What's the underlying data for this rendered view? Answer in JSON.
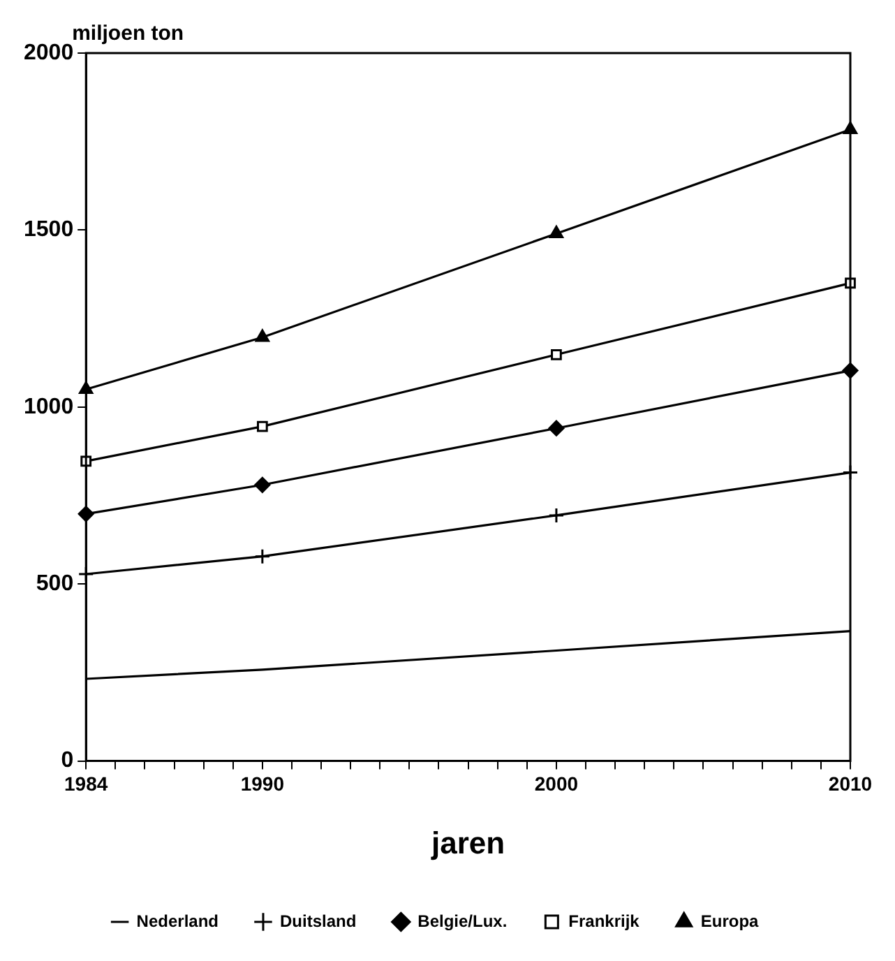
{
  "chart_data": {
    "type": "line",
    "ylabel": "miljoen ton",
    "xlabel": "jaren",
    "x": [
      1984,
      1990,
      2000,
      2010
    ],
    "series": [
      {
        "name": "Nederland",
        "color": "#000000",
        "marker": "none",
        "values": [
          232,
          258,
          312,
          367
        ]
      },
      {
        "name": "Duitsland",
        "color": "#000000",
        "marker": "cross",
        "values": [
          528,
          578,
          694,
          815
        ]
      },
      {
        "name": "Belgie/Lux.",
        "color": "#000000",
        "marker": "diamond",
        "values": [
          698,
          780,
          940,
          1103
        ]
      },
      {
        "name": "Frankrijk",
        "color": "#000000",
        "marker": "square",
        "values": [
          847,
          945,
          1148,
          1350
        ]
      },
      {
        "name": "Europa",
        "color": "#000000",
        "marker": "triangle",
        "values": [
          1050,
          1197,
          1490,
          1784
        ]
      }
    ],
    "xlim": [
      1984,
      2010
    ],
    "xticks": [
      1984,
      {
        "value": 1985,
        "label": null
      },
      {
        "value": 1986,
        "label": null
      },
      {
        "value": 1987,
        "label": null
      },
      {
        "value": 1988,
        "label": null
      },
      {
        "value": 1989,
        "label": null
      },
      1990,
      {
        "value": 1991,
        "label": null
      },
      {
        "value": 1992,
        "label": null
      },
      {
        "value": 1993,
        "label": null
      },
      {
        "value": 1994,
        "label": null
      },
      {
        "value": 1995,
        "label": null
      },
      {
        "value": 1996,
        "label": null
      },
      {
        "value": 1997,
        "label": null
      },
      {
        "value": 1998,
        "label": null
      },
      {
        "value": 1999,
        "label": null
      },
      2000,
      {
        "value": 2001,
        "label": null
      },
      {
        "value": 2002,
        "label": null
      },
      {
        "value": 2003,
        "label": null
      },
      {
        "value": 2004,
        "label": null
      },
      {
        "value": 2005,
        "label": null
      },
      {
        "value": 2006,
        "label": null
      },
      {
        "value": 2007,
        "label": null
      },
      {
        "value": 2008,
        "label": null
      },
      {
        "value": 2009,
        "label": null
      },
      2010
    ],
    "ylim": [
      0,
      2000
    ],
    "yticks": [
      0,
      500,
      1000,
      1500,
      2000
    ],
    "grid": false,
    "legend": "bottom",
    "line_style": "solid"
  }
}
